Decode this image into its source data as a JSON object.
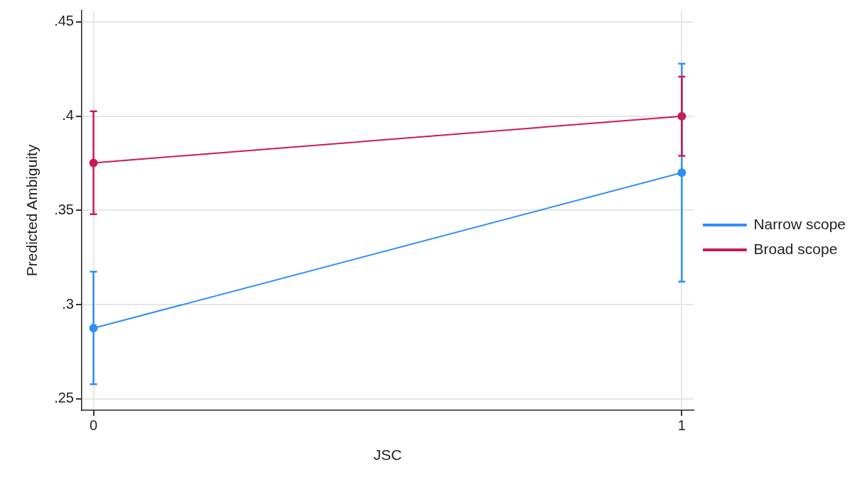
{
  "chart_data": {
    "type": "line",
    "xlabel": "JSC",
    "ylabel": "Predicted Ambiguity",
    "x": [
      0,
      1
    ],
    "series": [
      {
        "name": "Narrow scope",
        "color": "#2f8ef5",
        "values": [
          0.2875,
          0.37
        ],
        "errors": [
          [
            0.2578,
            0.3175
          ],
          [
            0.3122,
            0.4278
          ]
        ]
      },
      {
        "name": "Broad scope",
        "color": "#cc1a50",
        "values": [
          0.3752,
          0.4
        ],
        "errors": [
          [
            0.348,
            0.4026
          ],
          [
            0.379,
            0.421
          ]
        ]
      }
    ],
    "xlim": [
      -0.02,
      1.02
    ],
    "xticks": [
      0,
      1
    ],
    "ylim": [
      0.244,
      0.456
    ],
    "yticks": [
      {
        "value": 0.25,
        "label": ".25"
      },
      {
        "value": 0.3,
        "label": ".3"
      },
      {
        "value": 0.35,
        "label": ".35"
      },
      {
        "value": 0.4,
        "label": ".4"
      },
      {
        "value": 0.45,
        "label": ".45"
      }
    ],
    "grid": true,
    "legend": "right",
    "marker": "circle",
    "line_style": "solid"
  }
}
